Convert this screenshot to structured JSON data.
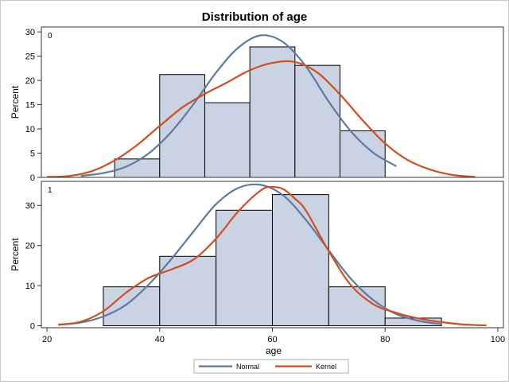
{
  "chart_data": {
    "type": "bar",
    "title": "Distribution of age",
    "xlabel": "age",
    "ylabel": "Percent",
    "xlim": [
      19,
      101
    ],
    "x_ticks": [
      20,
      40,
      60,
      80,
      100
    ],
    "legend_position": "bottom",
    "colors": {
      "bar_fill": "#c9d3e3",
      "bar_edge": "#000000",
      "normal": "#5e7a9e",
      "kernel": "#d24e1e"
    },
    "panels": [
      {
        "label": "0",
        "ylim": [
          0,
          31
        ],
        "y_ticks": [
          0,
          5,
          10,
          15,
          20,
          25,
          30
        ],
        "bins": [
          {
            "start": 32,
            "end": 40,
            "percent": 3.8
          },
          {
            "start": 40,
            "end": 48,
            "percent": 21.2
          },
          {
            "start": 48,
            "end": 56,
            "percent": 15.4
          },
          {
            "start": 56,
            "end": 64,
            "percent": 26.9
          },
          {
            "start": 64,
            "end": 72,
            "percent": 23.1
          },
          {
            "start": 72,
            "end": 80,
            "percent": 9.6
          }
        ],
        "series": [
          {
            "name": "Normal",
            "x": [
              26,
              30,
              34,
              38,
              42,
              46,
              50,
              54,
              58,
              62,
              66,
              70,
              74,
              78,
              82
            ],
            "y": [
              0.3,
              0.9,
              2.2,
              4.9,
              9.3,
              15.1,
              21.6,
              26.8,
              29.3,
              27.8,
              22.8,
              15.6,
              9.4,
              5.0,
              2.3
            ]
          },
          {
            "name": "Kernel",
            "x": [
              20,
              24,
              28,
              32,
              36,
              40,
              44,
              48,
              52,
              56,
              60,
              64,
              68,
              72,
              76,
              80,
              84,
              88,
              92,
              96
            ],
            "y": [
              0.1,
              0.3,
              1.3,
              3.5,
              6.7,
              10.6,
              14.4,
              17.2,
              19.6,
              22.1,
              23.6,
              23.8,
              21.6,
              17.1,
              11.8,
              7.0,
              3.6,
              1.6,
              0.5,
              0.1
            ]
          }
        ]
      },
      {
        "label": "1",
        "ylim": [
          -0.5,
          36
        ],
        "y_ticks": [
          0,
          10,
          20,
          30
        ],
        "bins": [
          {
            "start": 30,
            "end": 40,
            "percent": 9.7
          },
          {
            "start": 40,
            "end": 50,
            "percent": 17.3
          },
          {
            "start": 50,
            "end": 60,
            "percent": 28.8
          },
          {
            "start": 60,
            "end": 70,
            "percent": 32.7
          },
          {
            "start": 70,
            "end": 80,
            "percent": 9.7
          },
          {
            "start": 80,
            "end": 90,
            "percent": 1.9
          }
        ],
        "series": [
          {
            "name": "Normal",
            "x": [
              22,
              26,
              30,
              34,
              38,
              42,
              46,
              50,
              54,
              58,
              62,
              66,
              70,
              74,
              78,
              82,
              86,
              90
            ],
            "y": [
              0.3,
              0.8,
              2.3,
              5.2,
              10.2,
              16.5,
              23.5,
              30.3,
              34.4,
              35.1,
              32.4,
              26.3,
              18.8,
              11.6,
              6.3,
              2.9,
              1.2,
              0.4
            ]
          },
          {
            "name": "Kernel",
            "x": [
              22,
              26,
              30,
              34,
              38,
              42,
              46,
              50,
              54,
              58,
              60,
              62,
              64,
              66,
              70,
              74,
              78,
              82,
              86,
              90,
              94,
              98
            ],
            "y": [
              0.2,
              1.0,
              3.6,
              8.2,
              11.9,
              14.0,
              16.5,
              21.7,
              28.6,
              33.8,
              34.6,
              34.0,
              31.7,
              28.6,
              18.6,
              10.0,
              5.3,
              3.2,
              1.8,
              0.9,
              0.3,
              0.1
            ]
          }
        ]
      }
    ]
  }
}
